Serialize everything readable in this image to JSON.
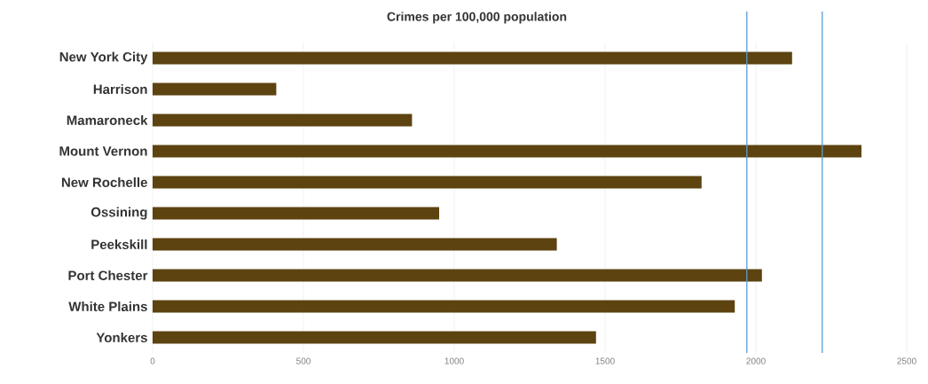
{
  "chart_data": {
    "type": "bar",
    "orientation": "horizontal",
    "title": "Crimes per 100,000 population",
    "categories": [
      "New York City",
      "Harrison",
      "Mamaroneck",
      "Mount Vernon",
      "New Rochelle",
      "Ossining",
      "Peekskill",
      "Port Chester",
      "White Plains",
      "Yonkers"
    ],
    "values": [
      2120,
      410,
      860,
      2350,
      1820,
      950,
      1340,
      2020,
      1930,
      1470
    ],
    "color": "#5c4310",
    "xlim": [
      0,
      2500
    ],
    "xticks": [
      0,
      500,
      1000,
      1500,
      2000,
      2500
    ],
    "grid": "x",
    "ref_lines": [
      {
        "axis": "x",
        "value": 1970,
        "color": "#5b9bd5"
      },
      {
        "axis": "x",
        "value": 2220,
        "color": "#5b9bd5"
      }
    ]
  }
}
